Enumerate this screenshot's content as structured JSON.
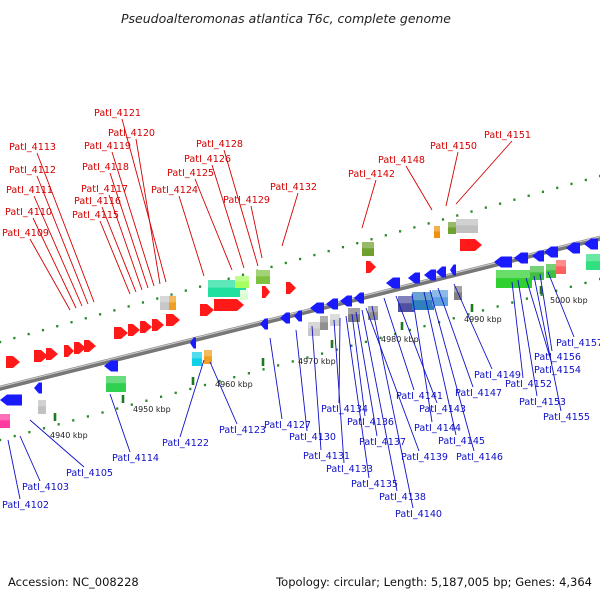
{
  "title": "Pseudoalteromonas atlantica T6c, complete genome",
  "accession": "Accession: NC_008228",
  "topology": "Topology: circular; Length: 5,187,005 bp; Genes: 4,364",
  "colors": {
    "backbone": "#8a8a8a",
    "forward_label": "#d40000",
    "reverse_label": "#1010c8",
    "forward_gene": "#ff1a1a",
    "reverse_gene": "#1a1aff",
    "tick": "#2a8a2a"
  },
  "ticks": [
    "4940 kbp",
    "4950 kbp",
    "4960 kbp",
    "4970 kbp",
    "4980 kbp",
    "4990 kbp",
    "5000 kbp"
  ],
  "forward_labels": [
    "PatI_4109",
    "PatI_4110",
    "PatI_4111",
    "PatI_4112",
    "PatI_4113",
    "PatI_4115",
    "PatI_4116",
    "PatI_4117",
    "PatI_4118",
    "PatI_4119",
    "PatI_4120",
    "PatI_4121",
    "PatI_4124",
    "PatI_4125",
    "PatI_4126",
    "PatI_4128",
    "PatI_4129",
    "PatI_4132",
    "PatI_4142",
    "PatI_4148",
    "PatI_4150",
    "PatI_4151"
  ],
  "reverse_labels": [
    "PatI_4102",
    "PatI_4103",
    "PatI_4105",
    "PatI_4114",
    "PatI_4122",
    "PatI_4123",
    "PatI_4127",
    "PatI_4130",
    "PatI_4131",
    "PatI_4133",
    "PatI_4134",
    "PatI_4135",
    "PatI_4136",
    "PatI_4137",
    "PatI_4138",
    "PatI_4139",
    "PatI_4140",
    "PatI_4141",
    "PatI_4143",
    "PatI_4144",
    "PatI_4145",
    "PatI_4146",
    "PatI_4147",
    "PatI_4149",
    "PatI_4152",
    "PatI_4153",
    "PatI_4154",
    "PatI_4155",
    "PatI_4156",
    "PatI_4157"
  ]
}
